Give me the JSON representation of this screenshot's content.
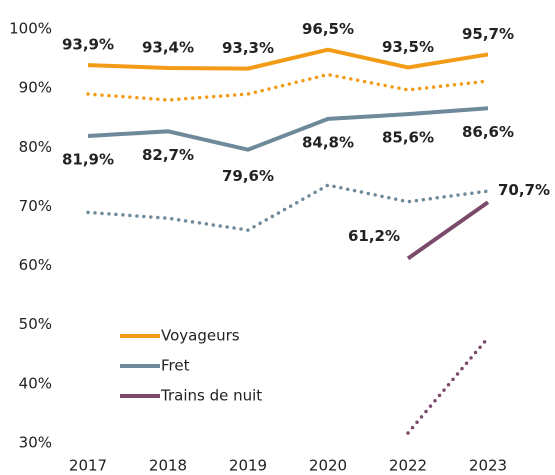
{
  "chart_data": {
    "type": "line",
    "categories": [
      "2017",
      "2018",
      "2019",
      "2020",
      "2022",
      "2023"
    ],
    "ylim": [
      30,
      100
    ],
    "yticks": [
      {
        "value": 30,
        "label": "30%"
      },
      {
        "value": 40,
        "label": "40%"
      },
      {
        "value": 50,
        "label": "50%"
      },
      {
        "value": 60,
        "label": "60%"
      },
      {
        "value": 70,
        "label": "70%"
      },
      {
        "value": 80,
        "label": "80%"
      },
      {
        "value": 90,
        "label": "90%"
      },
      {
        "value": 100,
        "label": "100%"
      }
    ],
    "grid": false,
    "legend": "lower-left",
    "series": [
      {
        "name": "Voyageurs",
        "color": "#f29b17",
        "style": "solid",
        "values": [
          93.9,
          93.4,
          93.3,
          96.5,
          93.5,
          95.7
        ],
        "value_labels": [
          "93,9%",
          "93,4%",
          "93,3%",
          "96,5%",
          "93,5%",
          "95,7%"
        ]
      },
      {
        "name": "Fret",
        "color": "#6e8a9a",
        "style": "solid",
        "values": [
          81.9,
          82.7,
          79.6,
          84.8,
          85.6,
          86.6
        ],
        "value_labels": [
          "81,9%",
          "82,7%",
          "79,6%",
          "84,8%",
          "85,6%",
          "86,6%"
        ]
      },
      {
        "name": "Trains de nuit",
        "color": "#7b4a6b",
        "style": "solid",
        "values": [
          null,
          null,
          null,
          null,
          61.2,
          70.7
        ],
        "value_labels": [
          null,
          null,
          null,
          null,
          "61,2%",
          "70,7%"
        ]
      },
      {
        "color": "#f29b17",
        "style": "dotted",
        "values": [
          89,
          88,
          89,
          92.3,
          89.7,
          91.2
        ]
      },
      {
        "color": "#6e8a9a",
        "style": "dotted",
        "values": [
          69,
          68,
          66,
          73.6,
          70.8,
          72.6
        ]
      },
      {
        "color": "#7b4a6b",
        "style": "dotted",
        "values": [
          null,
          null,
          null,
          null,
          31.7,
          47.8
        ]
      }
    ]
  }
}
